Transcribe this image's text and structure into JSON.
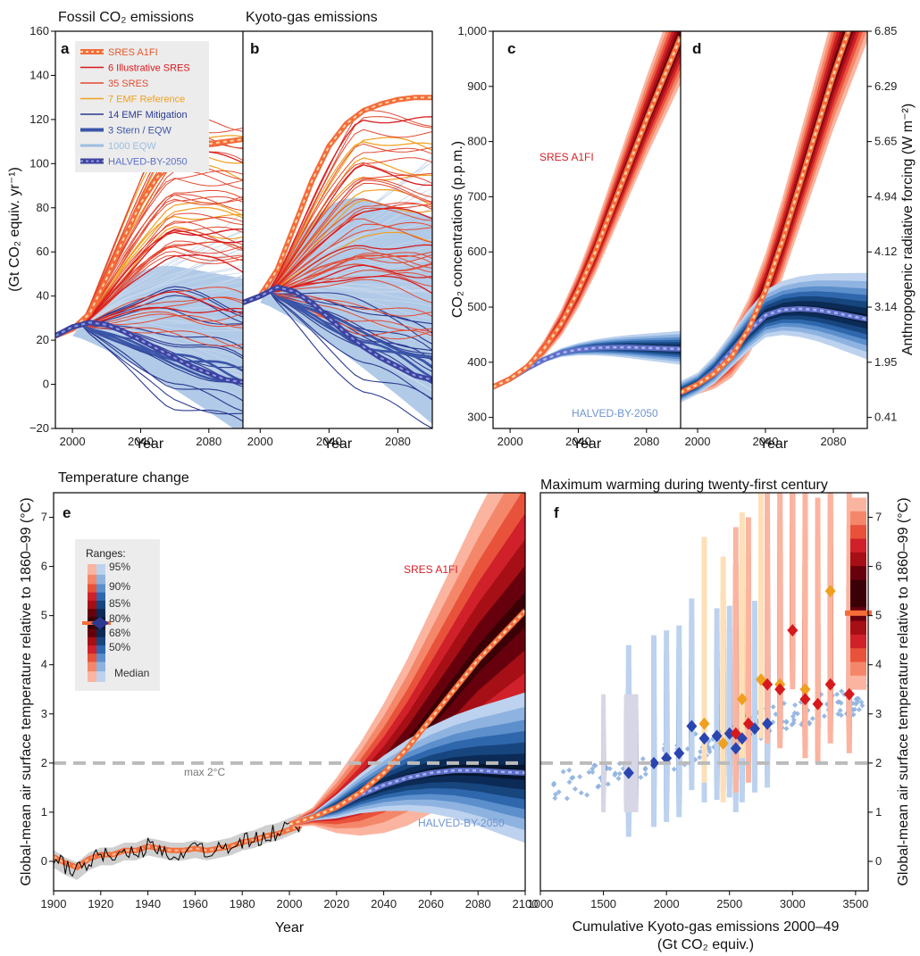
{
  "chart_data": [
    {
      "id": "a",
      "panel_letter": "a",
      "type": "line",
      "title": "Fossil CO₂ emissions",
      "ylabel": "(Gt CO₂ equiv. yr⁻¹)",
      "xlabel": "Year",
      "xlim": [
        1990,
        2100
      ],
      "ylim": [
        -20,
        160
      ],
      "xticks": [
        2000,
        2040,
        2080
      ],
      "yticks": [
        -20,
        0,
        20,
        40,
        60,
        80,
        100,
        120,
        140,
        160
      ],
      "legend": {
        "placement": "top-left",
        "entries": [
          {
            "label": "SRES A1FI",
            "color": "#e8562a",
            "style": "dotted-thick"
          },
          {
            "label": "6 Illustrative SRES",
            "color": "#d7191c",
            "style": "line"
          },
          {
            "label": "35 SRES",
            "color": "#e34a33",
            "style": "line"
          },
          {
            "label": "7 EMF Reference",
            "color": "#f0a020",
            "style": "line"
          },
          {
            "label": "14 EMF Mitigation",
            "color": "#2b3990",
            "style": "line"
          },
          {
            "label": "3 Stern / EQW",
            "color": "#3b55a8",
            "style": "thick"
          },
          {
            "label": "1000 EQW",
            "color": "#9cbde0",
            "style": "band"
          },
          {
            "label": "HALVED-BY-2050",
            "color": "#5e6fc8",
            "style": "dotted-thick"
          }
        ]
      },
      "series": [
        {
          "name": "SRES A1FI",
          "x": [
            1990,
            2000,
            2010,
            2020,
            2030,
            2040,
            2050,
            2060,
            2070,
            2080,
            2090,
            2100
          ],
          "y": [
            22,
            25,
            32,
            48,
            66,
            82,
            94,
            102,
            107,
            109,
            110,
            111
          ]
        },
        {
          "name": "HALVED-BY-2050",
          "x": [
            1990,
            2000,
            2010,
            2020,
            2030,
            2040,
            2050,
            2060,
            2070,
            2080,
            2090,
            2100
          ],
          "y": [
            22,
            26,
            28,
            27,
            24,
            20,
            16,
            12,
            8,
            5,
            2,
            1
          ]
        }
      ]
    },
    {
      "id": "b",
      "panel_letter": "b",
      "type": "line",
      "title": "Kyoto-gas emissions",
      "xlabel": "Year",
      "xlim": [
        1990,
        2100
      ],
      "ylim": [
        -20,
        160
      ],
      "xticks": [
        2000,
        2040,
        2080
      ],
      "series": [
        {
          "name": "SRES A1FI",
          "x": [
            1990,
            2000,
            2010,
            2020,
            2030,
            2040,
            2050,
            2060,
            2070,
            2080,
            2090,
            2100
          ],
          "y": [
            37,
            40,
            52,
            72,
            92,
            108,
            118,
            124,
            127,
            129,
            130,
            130
          ]
        },
        {
          "name": "HALVED-BY-2050",
          "x": [
            1990,
            2000,
            2010,
            2020,
            2030,
            2040,
            2050,
            2060,
            2070,
            2080,
            2090,
            2100
          ],
          "y": [
            37,
            40,
            44,
            42,
            37,
            30,
            23,
            17,
            12,
            8,
            4,
            2
          ]
        }
      ]
    },
    {
      "id": "c",
      "panel_letter": "c",
      "type": "area",
      "xlabel": "Year",
      "ylabel": "CO₂ concentrations (p.p.m.)",
      "xlim": [
        1990,
        2100
      ],
      "ylim": [
        280,
        1000
      ],
      "xticks": [
        2000,
        2040,
        2080
      ],
      "yticks": [
        300,
        400,
        500,
        600,
        700,
        800,
        900,
        1000
      ],
      "ytick_labels": [
        "300",
        "400",
        "500",
        "600",
        "700",
        "800",
        "900",
        "1,000"
      ],
      "annotations": [
        "SRES A1FI",
        "HALVED-BY-2050"
      ],
      "series": [
        {
          "name": "SRES A1FI",
          "x": [
            1990,
            2000,
            2010,
            2020,
            2030,
            2040,
            2050,
            2060,
            2070,
            2080,
            2090,
            2100
          ],
          "y": [
            355,
            370,
            392,
            425,
            470,
            530,
            600,
            680,
            760,
            840,
            915,
            990
          ]
        },
        {
          "name": "HALVED-BY-2050",
          "x": [
            1990,
            2000,
            2010,
            2020,
            2030,
            2040,
            2050,
            2060,
            2070,
            2080,
            2090,
            2100
          ],
          "y": [
            355,
            370,
            389,
            405,
            417,
            423,
            426,
            427,
            427,
            426,
            425,
            424
          ]
        }
      ]
    },
    {
      "id": "d",
      "panel_letter": "d",
      "type": "area",
      "xlabel": "Year",
      "ylabel_right": "Anthropogenic radiative forcing (W m⁻²)",
      "xlim": [
        1990,
        2100
      ],
      "ylim": [
        280,
        1000
      ],
      "xticks": [
        2000,
        2040,
        2080
      ],
      "right_tick_labels": [
        "0.41",
        "1.95",
        "3.14",
        "4.12",
        "4.94",
        "5.65",
        "6.29",
        "6.85"
      ],
      "series": [
        {
          "name": "SRES A1FI",
          "x": [
            1990,
            2000,
            2010,
            2020,
            2030,
            2040,
            2050,
            2060,
            2070,
            2080,
            2090,
            2100
          ],
          "y": [
            345,
            360,
            380,
            410,
            460,
            530,
            620,
            720,
            820,
            920,
            1010,
            1100
          ]
        },
        {
          "name": "HALVED-BY-2050",
          "x": [
            1990,
            2000,
            2010,
            2020,
            2030,
            2040,
            2050,
            2060,
            2070,
            2080,
            2090,
            2100
          ],
          "y": [
            345,
            360,
            385,
            420,
            455,
            485,
            495,
            497,
            495,
            490,
            484,
            478
          ]
        }
      ]
    },
    {
      "id": "e",
      "panel_letter": "e",
      "type": "area",
      "title": "Temperature change",
      "xlabel": "Year",
      "ylabel": "Global-mean air surface temperature relative to 1860–99 (°C)",
      "xlim": [
        1900,
        2100
      ],
      "ylim": [
        -0.6,
        7.5
      ],
      "xticks": [
        1900,
        1920,
        1940,
        1960,
        1980,
        2000,
        2020,
        2040,
        2060,
        2080,
        2100
      ],
      "yticks": [
        0,
        1,
        2,
        3,
        4,
        5,
        6,
        7
      ],
      "reference_line": {
        "label": "max 2°C",
        "y": 2
      },
      "annotations": [
        "SRES A1FI",
        "HALVED-BY-2050"
      ],
      "legend": {
        "placement": "top-left",
        "title": "Ranges:",
        "entries": [
          "95%",
          "90%",
          "85%",
          "80%",
          "68%",
          "50%",
          "Median"
        ]
      },
      "series": [
        {
          "name": "observed",
          "x": [
            1900,
            1905,
            1910,
            1915,
            1920,
            1925,
            1930,
            1935,
            1940,
            1945,
            1950,
            1955,
            1960,
            1965,
            1970,
            1975,
            1980,
            1985,
            1990,
            1995,
            2000,
            2005
          ],
          "y": [
            0.05,
            -0.1,
            -0.2,
            0.0,
            0.1,
            0.1,
            0.2,
            0.2,
            0.3,
            0.25,
            0.2,
            0.2,
            0.25,
            0.2,
            0.25,
            0.3,
            0.4,
            0.45,
            0.55,
            0.6,
            0.7,
            0.8
          ]
        },
        {
          "name": "SRES A1FI",
          "x": [
            2000,
            2010,
            2020,
            2030,
            2040,
            2050,
            2060,
            2070,
            2080,
            2090,
            2100
          ],
          "y": [
            0.75,
            0.9,
            1.1,
            1.4,
            1.8,
            2.3,
            2.9,
            3.5,
            4.1,
            4.6,
            5.1
          ]
        },
        {
          "name": "HALVED-BY-2050",
          "x": [
            2000,
            2010,
            2020,
            2030,
            2040,
            2050,
            2060,
            2070,
            2080,
            2090,
            2100
          ],
          "y": [
            0.75,
            0.9,
            1.1,
            1.35,
            1.55,
            1.7,
            1.8,
            1.85,
            1.85,
            1.82,
            1.8
          ]
        }
      ]
    },
    {
      "id": "f",
      "panel_letter": "f",
      "type": "scatter",
      "title": "Maximum warming during twenty-first century",
      "xlabel": "Cumulative Kyoto-gas emissions 2000–49",
      "xlabel2": "(Gt CO₂ equiv.)",
      "ylabel_right": "Global-mean air surface temperature relative to 1860–99 (°C)",
      "xlim": [
        1000,
        3600
      ],
      "ylim": [
        -0.6,
        7.5
      ],
      "xticks": [
        1000,
        1500,
        2000,
        2500,
        3000,
        3500
      ],
      "yticks": [
        0,
        1,
        2,
        3,
        4,
        5,
        6,
        7
      ],
      "reference_line": {
        "y": 2
      },
      "series": [
        {
          "name": "EQW",
          "x": [
            1100,
            1200,
            1300,
            1400,
            1500,
            1600,
            1700,
            1800,
            1900,
            2000,
            2100,
            2200,
            2300,
            2400,
            2500,
            2600,
            2700,
            2800,
            2900,
            3000,
            3100,
            3200,
            3300,
            3400,
            3500,
            3550
          ],
          "y": [
            1.5,
            1.55,
            1.6,
            1.65,
            1.7,
            1.75,
            1.8,
            1.9,
            2.0,
            2.1,
            2.2,
            2.3,
            2.4,
            2.5,
            2.55,
            2.65,
            2.75,
            2.85,
            2.9,
            3.0,
            3.05,
            3.1,
            3.15,
            3.2,
            3.25,
            3.3
          ]
        },
        {
          "name": "Stern / EMF Mitigation",
          "x": [
            1700,
            1900,
            2000,
            2100,
            2200,
            2300,
            2400,
            2500,
            2550,
            2600,
            2700,
            2800
          ],
          "y": [
            1.8,
            2.0,
            2.1,
            2.2,
            2.75,
            2.5,
            2.55,
            2.6,
            2.3,
            2.5,
            2.7,
            2.8
          ]
        },
        {
          "name": "EMF Reference",
          "x": [
            2300,
            2450,
            2600,
            2750,
            2900,
            3100,
            3300
          ],
          "y": [
            2.8,
            2.4,
            3.3,
            3.7,
            3.6,
            3.5,
            5.5
          ]
        },
        {
          "name": "SRES",
          "x": [
            2550,
            2650,
            2800,
            2900,
            3000,
            3100,
            3200,
            3300,
            3450
          ],
          "y": [
            2.6,
            2.8,
            3.6,
            3.5,
            4.7,
            3.3,
            3.2,
            3.6,
            3.4
          ]
        }
      ]
    }
  ]
}
